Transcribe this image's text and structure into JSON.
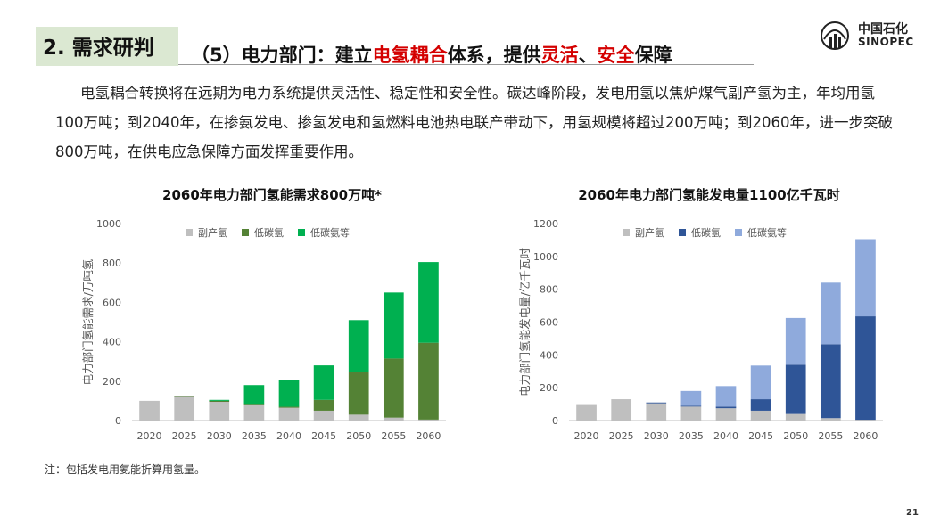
{
  "header": {
    "section_label": "2. 需求研判",
    "subtitle_parts": [
      "（5）电力部门：建立",
      "电氢耦合",
      "体系，提供",
      "灵活",
      "、",
      "安全",
      "保障"
    ],
    "logo_cn": "中国石化",
    "logo_en": "SINOPEC"
  },
  "body_text": "电氢耦合转换将在远期为电力系统提供灵活性、稳定性和安全性。碳达峰阶段，发电用氢以焦炉煤气副产氢为主，年均用氢100万吨；到2040年，在掺氨发电、掺氢发电和氢燃料电池热电联产带动下，用氢规模将超过200万吨；到2060年，进一步突破800万吨，在供电应急保障方面发挥重要作用。",
  "footnote": "注：包括发电用氨能折算用氢量。",
  "page_number": "21",
  "colors": {
    "accent_red": "#d40000",
    "section_bg": "#dbe8d2"
  },
  "chart_data": [
    {
      "type": "bar",
      "stacked": true,
      "title": "2060年电力部门氢能需求800万吨*",
      "ylabel": "电力部门氢能需求/万吨氢",
      "xlabel": "",
      "ylim": [
        0,
        1000
      ],
      "yticks": [
        0,
        200,
        400,
        600,
        800,
        1000
      ],
      "grid": false,
      "legend_position": "top",
      "categories": [
        "2020",
        "2025",
        "2030",
        "2035",
        "2040",
        "2045",
        "2050",
        "2055",
        "2060"
      ],
      "series": [
        {
          "name": "副产氢",
          "color": "#bfbfbf",
          "values": [
            100,
            120,
            95,
            80,
            65,
            50,
            30,
            15,
            5
          ]
        },
        {
          "name": "低碳氢",
          "color": "#548235",
          "values": [
            0,
            2,
            5,
            5,
            5,
            55,
            215,
            300,
            390
          ]
        },
        {
          "name": "低碳氨等",
          "color": "#00b050",
          "values": [
            0,
            0,
            5,
            95,
            135,
            175,
            265,
            335,
            410
          ]
        }
      ]
    },
    {
      "type": "bar",
      "stacked": true,
      "title": "2060年电力部门氢能发电量1100亿千瓦时",
      "ylabel": "电力部门氢能发电量/亿千瓦时",
      "xlabel": "",
      "ylim": [
        0,
        1200
      ],
      "yticks": [
        0,
        200,
        400,
        600,
        800,
        1000,
        1200
      ],
      "grid": false,
      "legend_position": "top",
      "categories": [
        "2020",
        "2025",
        "2030",
        "2035",
        "2040",
        "2045",
        "2050",
        "2055",
        "2060"
      ],
      "series": [
        {
          "name": "副产氢",
          "color": "#bfbfbf",
          "values": [
            100,
            130,
            105,
            85,
            75,
            60,
            40,
            15,
            5
          ]
        },
        {
          "name": "低碳氢",
          "color": "#2f5597",
          "values": [
            0,
            0,
            5,
            5,
            10,
            70,
            300,
            450,
            630
          ]
        },
        {
          "name": "低碳氨等",
          "color": "#8faadc",
          "values": [
            0,
            0,
            0,
            90,
            125,
            205,
            285,
            375,
            470
          ]
        }
      ]
    }
  ]
}
